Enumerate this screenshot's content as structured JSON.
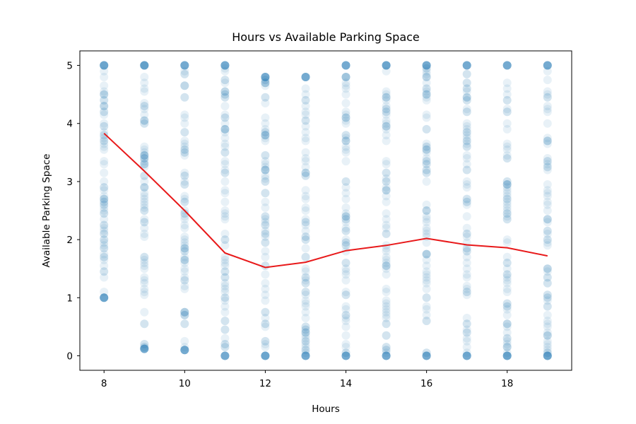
{
  "chart_data": {
    "type": "scatter",
    "title": "Hours vs Available Parking Space",
    "xlabel": "Hours",
    "ylabel": "Available Parking Space",
    "xlim": [
      7.4,
      19.6
    ],
    "ylim": [
      -0.25,
      5.25
    ],
    "xticks": [
      8,
      10,
      12,
      14,
      16,
      18
    ],
    "yticks": [
      0,
      1,
      2,
      3,
      4,
      5
    ],
    "grid": false,
    "colors": {
      "scatter": "#1f77b4",
      "mean_line": "#e8191a"
    },
    "series": [
      {
        "type": "scatter",
        "hours": [
          8,
          9,
          10,
          11,
          12,
          13,
          14,
          15,
          16,
          17,
          18,
          19
        ],
        "point_range": [
          [
            1.0,
            5.0
          ],
          [
            0.12,
            5.0
          ],
          [
            0.1,
            5.0
          ],
          [
            0.0,
            5.0
          ],
          [
            0.0,
            4.8
          ],
          [
            0.0,
            4.8
          ],
          [
            0.0,
            5.0
          ],
          [
            0.0,
            5.0
          ],
          [
            0.0,
            5.0
          ],
          [
            0.0,
            5.0
          ],
          [
            0.0,
            5.0
          ],
          [
            0.0,
            5.0
          ]
        ]
      },
      {
        "type": "line",
        "x": [
          8,
          9,
          10,
          11,
          12,
          13,
          14,
          15,
          16,
          17,
          18,
          19
        ],
        "y": [
          3.83,
          3.18,
          2.5,
          1.77,
          1.52,
          1.61,
          1.81,
          1.9,
          2.02,
          1.91,
          1.86,
          1.72
        ]
      }
    ]
  }
}
